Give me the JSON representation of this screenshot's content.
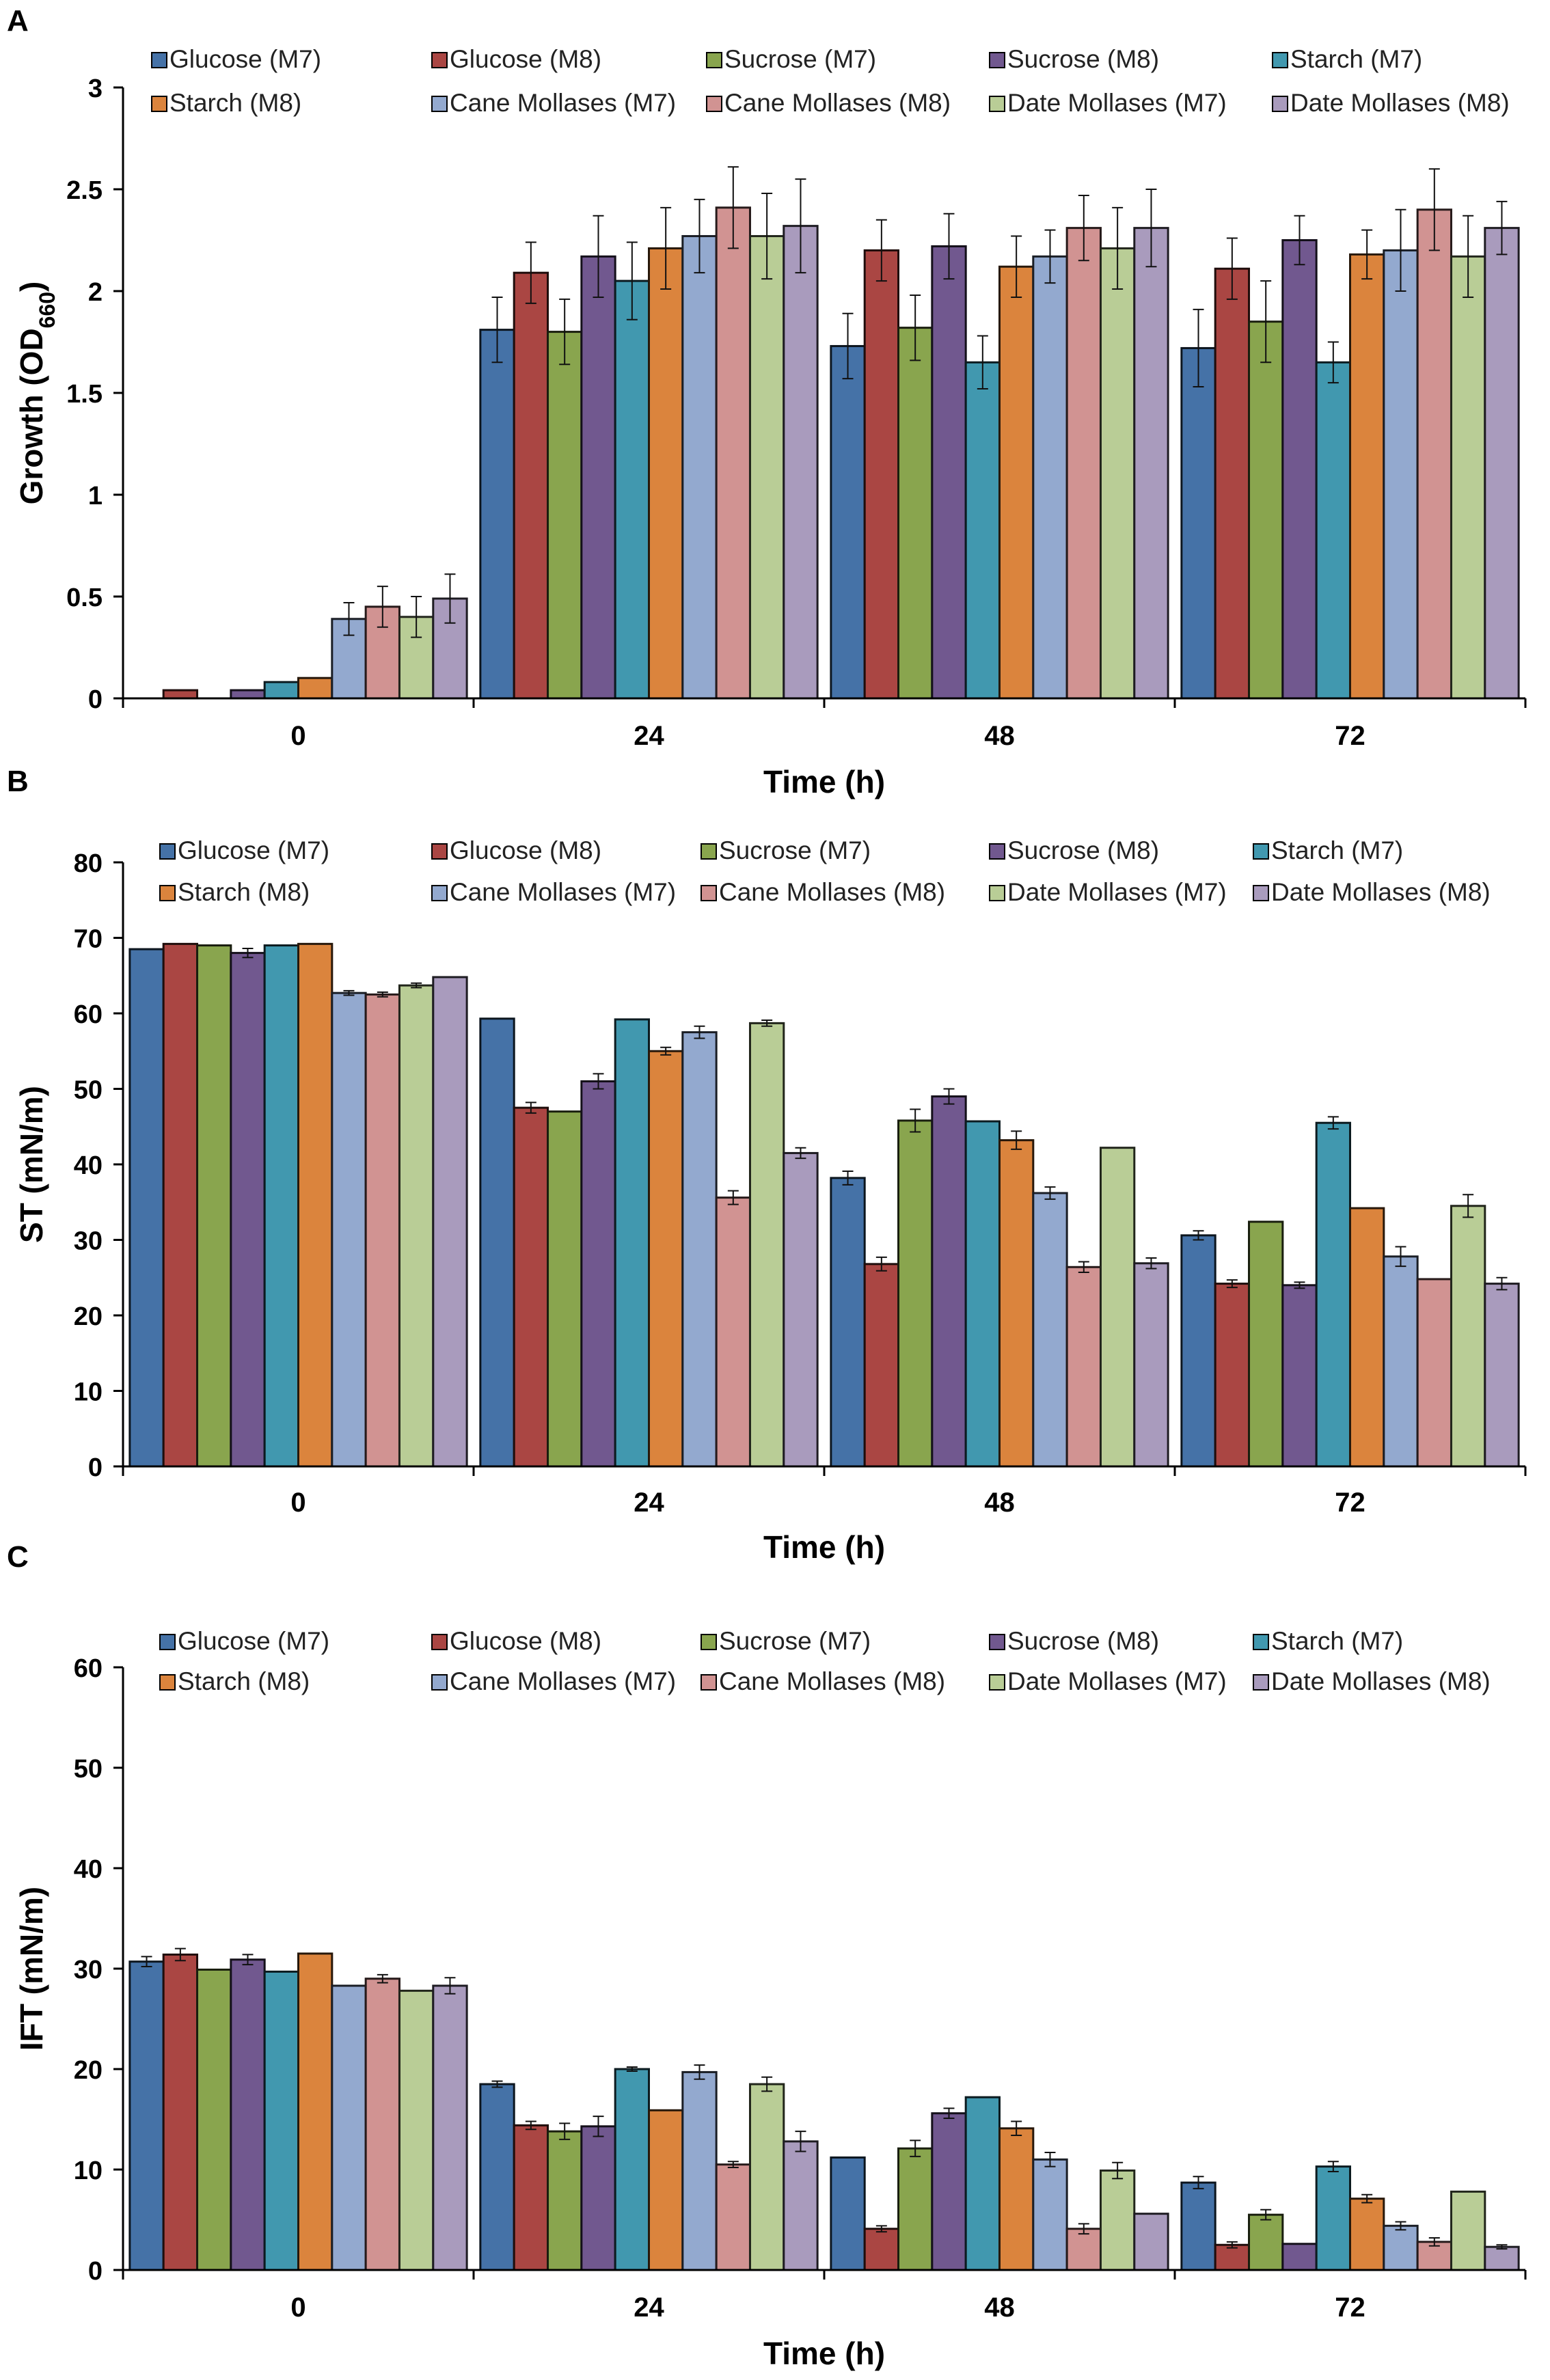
{
  "legend": {
    "labels": [
      "Glucose (M7)",
      "Glucose (M8)",
      "Sucrose (M7)",
      "Sucrose (M8)",
      "Starch (M7)",
      "Starch (M8)",
      "Cane Mollases (M7)",
      "Cane Mollases (M8)",
      "Date Mollases (M7)",
      "Date Mollases (M8)"
    ],
    "colors": [
      "#4572A7",
      "#AA4643",
      "#89A54E",
      "#71588F",
      "#4198AF",
      "#DB843D",
      "#93A9CF",
      "#D19392",
      "#B9CD96",
      "#A99BBD"
    ]
  },
  "chart_data": [
    {
      "panel": "A",
      "type": "bar",
      "title": "",
      "xlabel": "Time (h)",
      "ylabel_main": "Growth (OD",
      "ylabel_sub": "660",
      "ylabel_end": ")",
      "ylim": [
        0,
        3
      ],
      "yticks": [
        "0",
        "0.5",
        "1",
        "1.5",
        "2",
        "2.5",
        "3"
      ],
      "categories": [
        "0",
        "24",
        "48",
        "72"
      ],
      "series": [
        {
          "name": "Glucose (M7)",
          "values": [
            0,
            1.81,
            1.73,
            1.72
          ],
          "errors": [
            0,
            0.16,
            0.16,
            0.19
          ]
        },
        {
          "name": "Glucose (M8)",
          "values": [
            0.04,
            2.09,
            2.2,
            2.11
          ],
          "errors": [
            0,
            0.15,
            0.15,
            0.15
          ]
        },
        {
          "name": "Sucrose (M7)",
          "values": [
            0,
            1.8,
            1.82,
            1.85
          ],
          "errors": [
            0,
            0.16,
            0.16,
            0.2
          ]
        },
        {
          "name": "Sucrose (M8)",
          "values": [
            0.04,
            2.17,
            2.22,
            2.25
          ],
          "errors": [
            0,
            0.2,
            0.16,
            0.12
          ]
        },
        {
          "name": "Starch (M7)",
          "values": [
            0.08,
            2.05,
            1.65,
            1.65
          ],
          "errors": [
            0,
            0.19,
            0.13,
            0.1
          ]
        },
        {
          "name": "Starch (M8)",
          "values": [
            0.1,
            2.21,
            2.12,
            2.18
          ],
          "errors": [
            0,
            0.2,
            0.15,
            0.12
          ]
        },
        {
          "name": "Cane Mollases (M7)",
          "values": [
            0.39,
            2.27,
            2.17,
            2.2
          ],
          "errors": [
            0.08,
            0.18,
            0.13,
            0.2
          ]
        },
        {
          "name": "Cane Mollases (M8)",
          "values": [
            0.45,
            2.41,
            2.31,
            2.4
          ],
          "errors": [
            0.1,
            0.2,
            0.16,
            0.2
          ]
        },
        {
          "name": "Date Mollases (M7)",
          "values": [
            0.4,
            2.27,
            2.21,
            2.17
          ],
          "errors": [
            0.1,
            0.21,
            0.2,
            0.2
          ]
        },
        {
          "name": "Date Mollases (M8)",
          "values": [
            0.49,
            2.32,
            2.31,
            2.31
          ],
          "errors": [
            0.12,
            0.23,
            0.19,
            0.13
          ]
        }
      ]
    },
    {
      "panel": "B",
      "type": "bar",
      "title": "",
      "xlabel": "Time (h)",
      "ylabel_main": "ST (mN/m)",
      "ylabel_sub": "",
      "ylabel_end": "",
      "ylim": [
        0,
        80
      ],
      "yticks": [
        "0",
        "10",
        "20",
        "30",
        "40",
        "50",
        "60",
        "70",
        "80"
      ],
      "categories": [
        "0",
        "24",
        "48",
        "72"
      ],
      "series": [
        {
          "name": "Glucose (M7)",
          "values": [
            68.5,
            59.3,
            38.2,
            30.6
          ],
          "errors": [
            0,
            0,
            0.9,
            0.6
          ]
        },
        {
          "name": "Glucose (M8)",
          "values": [
            69.2,
            47.5,
            26.8,
            24.2
          ],
          "errors": [
            0,
            0.7,
            0.9,
            0.5
          ]
        },
        {
          "name": "Sucrose (M7)",
          "values": [
            69.0,
            47.0,
            45.8,
            32.4
          ],
          "errors": [
            0,
            0,
            1.5,
            0
          ]
        },
        {
          "name": "Sucrose (M8)",
          "values": [
            68.0,
            51.0,
            49.0,
            24.0
          ],
          "errors": [
            0.6,
            1.0,
            1.0,
            0.4
          ]
        },
        {
          "name": "Starch (M7)",
          "values": [
            69.0,
            59.2,
            45.7,
            45.5
          ],
          "errors": [
            0,
            0,
            0,
            0.8
          ]
        },
        {
          "name": "Starch (M8)",
          "values": [
            69.2,
            55.0,
            43.2,
            34.2
          ],
          "errors": [
            0,
            0.5,
            1.2,
            0
          ]
        },
        {
          "name": "Cane Mollases (M7)",
          "values": [
            62.7,
            57.5,
            36.2,
            27.8
          ],
          "errors": [
            0.3,
            0.8,
            0.8,
            1.3
          ]
        },
        {
          "name": "Cane Mollases (M8)",
          "values": [
            62.5,
            35.6,
            26.4,
            24.8
          ],
          "errors": [
            0.3,
            0.9,
            0.7,
            0
          ]
        },
        {
          "name": "Date Mollases (M7)",
          "values": [
            63.7,
            58.7,
            42.2,
            34.5
          ],
          "errors": [
            0.3,
            0.4,
            0,
            1.5
          ]
        },
        {
          "name": "Date Mollases (M8)",
          "values": [
            64.8,
            41.5,
            26.9,
            24.2
          ],
          "errors": [
            0,
            0.7,
            0.7,
            0.8
          ]
        }
      ]
    },
    {
      "panel": "C",
      "type": "bar",
      "title": "",
      "xlabel": "Time (h)",
      "ylabel_main": "IFT (mN/m)",
      "ylabel_sub": "",
      "ylabel_end": "",
      "ylim": [
        0,
        60
      ],
      "yticks": [
        "0",
        "10",
        "20",
        "30",
        "40",
        "50",
        "60"
      ],
      "categories": [
        "0",
        "24",
        "48",
        "72"
      ],
      "series": [
        {
          "name": "Glucose (M7)",
          "values": [
            30.7,
            18.5,
            11.2,
            8.7
          ],
          "errors": [
            0.5,
            0.3,
            0,
            0.6
          ]
        },
        {
          "name": "Glucose (M8)",
          "values": [
            31.4,
            14.4,
            4.1,
            2.5
          ],
          "errors": [
            0.6,
            0.4,
            0.3,
            0.3
          ]
        },
        {
          "name": "Sucrose (M7)",
          "values": [
            29.9,
            13.8,
            12.1,
            5.5
          ],
          "errors": [
            0,
            0.8,
            0.8,
            0.5
          ]
        },
        {
          "name": "Sucrose (M8)",
          "values": [
            30.9,
            14.3,
            15.6,
            2.6
          ],
          "errors": [
            0.5,
            1.0,
            0.5,
            0
          ]
        },
        {
          "name": "Starch (M7)",
          "values": [
            29.7,
            20.0,
            17.2,
            10.3
          ],
          "errors": [
            0,
            0.2,
            0,
            0.5
          ]
        },
        {
          "name": "Starch (M8)",
          "values": [
            31.5,
            15.9,
            14.1,
            7.1
          ],
          "errors": [
            0,
            0,
            0.7,
            0.4
          ]
        },
        {
          "name": "Cane Mollases (M7)",
          "values": [
            28.3,
            19.7,
            11.0,
            4.4
          ],
          "errors": [
            0,
            0.7,
            0.7,
            0.4
          ]
        },
        {
          "name": "Cane Mollases (M8)",
          "values": [
            29.0,
            10.5,
            4.1,
            2.8
          ],
          "errors": [
            0.4,
            0.3,
            0.5,
            0.4
          ]
        },
        {
          "name": "Date Mollases (M7)",
          "values": [
            27.8,
            18.5,
            9.9,
            7.8
          ],
          "errors": [
            0,
            0.7,
            0.8,
            0
          ]
        },
        {
          "name": "Date Mollases (M8)",
          "values": [
            28.3,
            12.8,
            5.6,
            2.3
          ],
          "errors": [
            0.8,
            1.0,
            0,
            0.2
          ]
        }
      ]
    }
  ]
}
